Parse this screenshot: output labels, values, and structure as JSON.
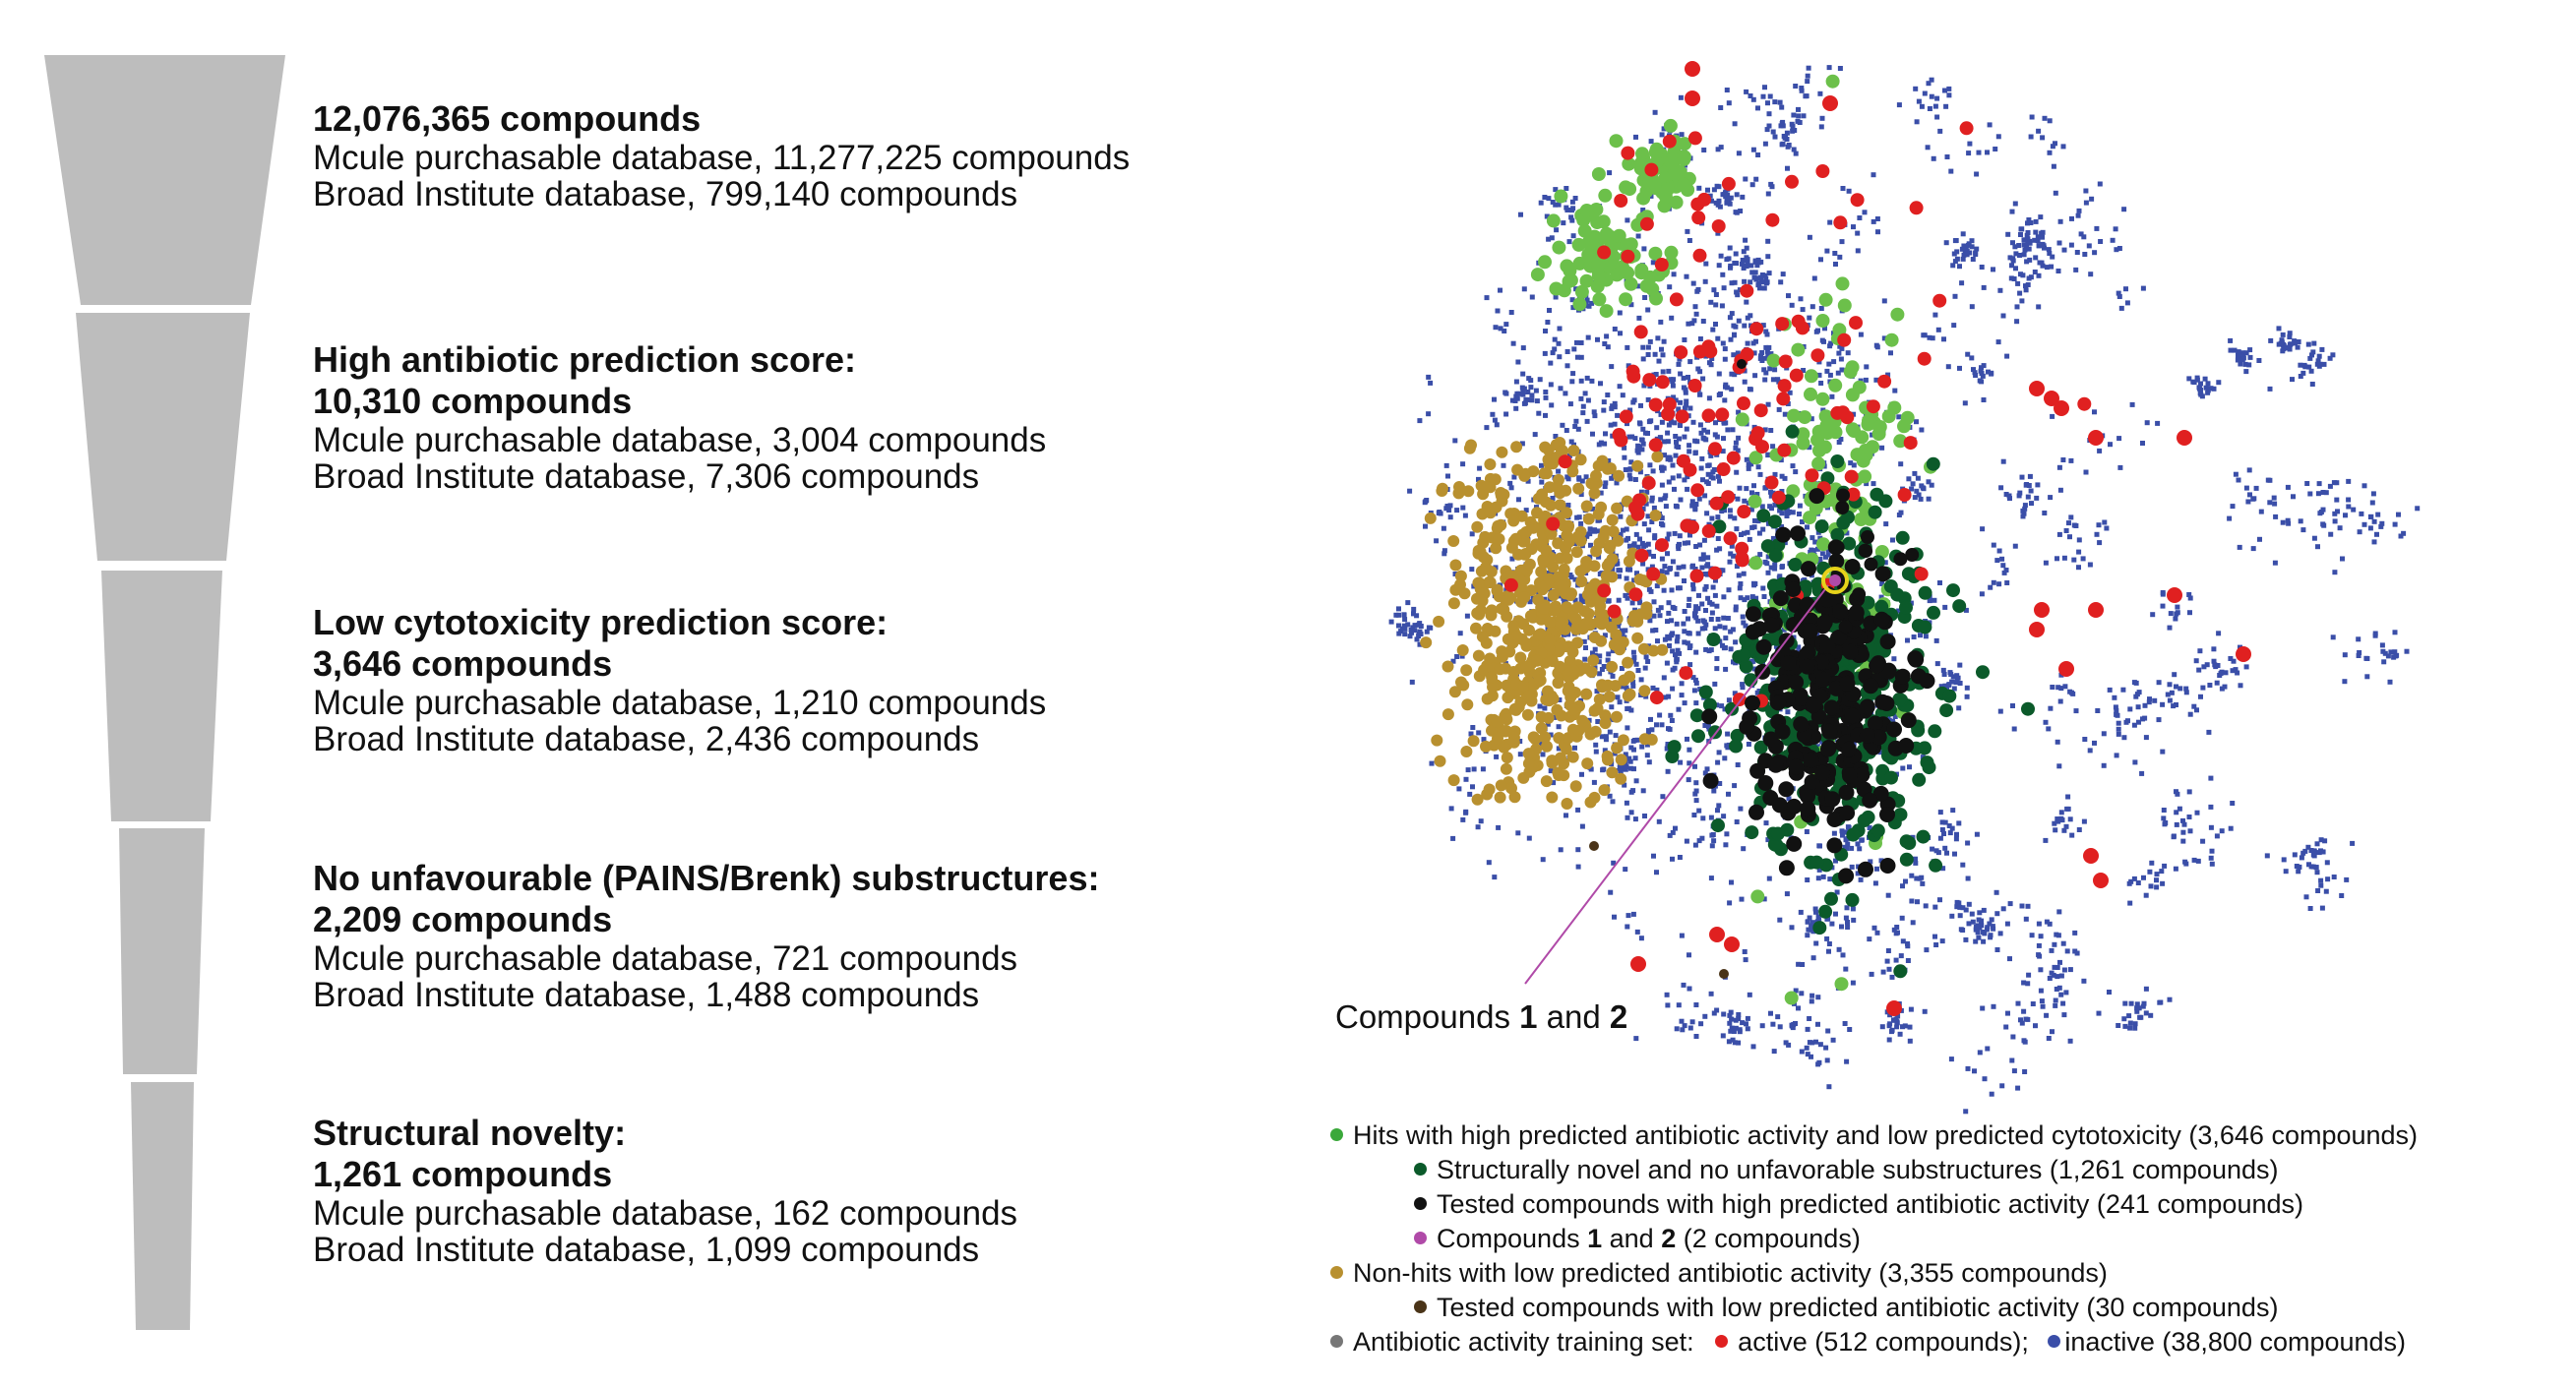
{
  "funnel": {
    "stages": [
      {
        "title_lines": [
          "12,076,365 compounds"
        ],
        "details": [
          "Mcule purchasable database, 11,277,225 compounds",
          "Broad Institute database, 799,140 compounds"
        ]
      },
      {
        "title_lines": [
          "High antibiotic prediction score:",
          "10,310 compounds"
        ],
        "details": [
          "Mcule purchasable database, 3,004 compounds",
          "Broad Institute database, 7,306 compounds"
        ]
      },
      {
        "title_lines": [
          "Low cytotoxicity prediction score:",
          "3,646 compounds"
        ],
        "details": [
          "Mcule purchasable database, 1,210 compounds",
          "Broad Institute database, 2,436 compounds"
        ]
      },
      {
        "title_lines": [
          "No unfavourable (PAINS/Brenk) substructures:",
          "2,209 compounds"
        ],
        "details": [
          "Mcule purchasable database, 721 compounds",
          "Broad Institute database, 1,488 compounds"
        ]
      },
      {
        "title_lines": [
          "Structural novelty:",
          "1,261 compounds"
        ],
        "details": [
          "Mcule purchasable database, 162 compounds",
          "Broad Institute database, 1,099 compounds"
        ]
      }
    ],
    "color": "#bdbdbd"
  },
  "annotation": {
    "prefix": "Compounds ",
    "num1": "1",
    "middle": " and ",
    "num2": "2",
    "line_color": "#b04aa8",
    "marker_color": "#e6d21a"
  },
  "legend": {
    "items": [
      {
        "text": "Hits with high predicted antibiotic activity and low predicted cytotoxicity (3,646 compounds)",
        "color": "#3aa83a"
      },
      {
        "text": "Structurally novel and no unfavorable substructures (1,261 compounds)",
        "color": "#0b5a2a"
      },
      {
        "text": "Tested compounds with high predicted antibiotic activity (241 compounds)",
        "color": "#111111"
      },
      {
        "text_prefix": "Compounds ",
        "num1": "1",
        "middle": " and ",
        "num2": "2",
        "suffix": " (2 compounds)",
        "color": "#b04aa8"
      },
      {
        "text": "Non-hits with low predicted antibiotic activity (3,355 compounds)",
        "color": "#b8902f"
      },
      {
        "text": "Tested compounds with low predicted antibiotic activity (30 compounds)",
        "color": "#4a3418"
      },
      {
        "label": "Antibiotic activity training set:",
        "color": "#777777",
        "active": "active (512 compounds);",
        "active_color": "#e02020",
        "inactive": "inactive (38,800 compounds)",
        "inactive_color": "#3a4ea8"
      }
    ]
  },
  "colors": {
    "inactive": "#3a4ea8",
    "active": "#e02020",
    "hit": "#6cc04a",
    "novel": "#0b5a2a",
    "tested": "#111111",
    "nonhit": "#b8902f",
    "tested_low": "#4a3418"
  }
}
